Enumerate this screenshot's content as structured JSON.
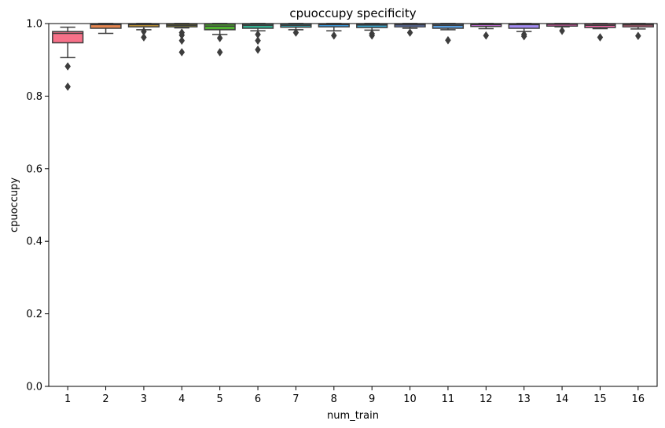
{
  "chart_data": {
    "type": "box",
    "title": "cpuoccupy specificity",
    "xlabel": "num_train",
    "ylabel": "cpuoccupy",
    "ylim": [
      0,
      1
    ],
    "yticks": [
      0.0,
      0.2,
      0.4,
      0.6,
      0.8,
      1.0
    ],
    "ytick_labels": [
      "0.0",
      "0.2",
      "0.4",
      "0.6",
      "0.8",
      "1.0"
    ],
    "grid": false,
    "legend": "none",
    "categories": [
      "1",
      "2",
      "3",
      "4",
      "5",
      "6",
      "7",
      "8",
      "9",
      "10",
      "11",
      "12",
      "13",
      "14",
      "15",
      "16"
    ],
    "boxes": [
      {
        "category": "1",
        "color": "#f77189",
        "whisker_low": 0.906,
        "q1": 0.947,
        "median": 0.973,
        "q3": 0.978,
        "whisker_high": 0.99,
        "outliers": [
          0.882,
          0.826
        ]
      },
      {
        "category": "2",
        "color": "#e5854e",
        "whisker_low": 0.973,
        "q1": 0.987,
        "median": 0.997,
        "q3": 0.999,
        "whisker_high": 1.0,
        "outliers": []
      },
      {
        "category": "3",
        "color": "#c39532",
        "whisker_low": 0.983,
        "q1": 0.991,
        "median": 0.997,
        "q3": 0.999,
        "whisker_high": 1.0,
        "outliers": [
          0.978,
          0.962
        ]
      },
      {
        "category": "4",
        "color": "#a4a031",
        "whisker_low": 0.988,
        "q1": 0.991,
        "median": 0.995,
        "q3": 0.999,
        "whisker_high": 1.0,
        "outliers": [
          0.975,
          0.968,
          0.953,
          0.921
        ]
      },
      {
        "category": "5",
        "color": "#50b131",
        "whisker_low": 0.97,
        "q1": 0.983,
        "median": 0.993,
        "q3": 0.999,
        "whisker_high": 1.0,
        "outliers": [
          0.96,
          0.921
        ]
      },
      {
        "category": "6",
        "color": "#34ae91",
        "whisker_low": 0.98,
        "q1": 0.987,
        "median": 0.995,
        "q3": 0.999,
        "whisker_high": 1.0,
        "outliers": [
          0.97,
          0.953,
          0.928
        ]
      },
      {
        "category": "7",
        "color": "#37abb5",
        "whisker_low": 0.983,
        "q1": 0.99,
        "median": 0.995,
        "q3": 0.999,
        "whisker_high": 1.0,
        "outliers": [
          0.975
        ]
      },
      {
        "category": "8",
        "color": "#3ba3ec",
        "whisker_low": 0.98,
        "q1": 0.991,
        "median": 0.997,
        "q3": 0.999,
        "whisker_high": 1.0,
        "outliers": [
          0.967
        ]
      },
      {
        "category": "9",
        "color": "#38a7d0",
        "whisker_low": 0.982,
        "q1": 0.989,
        "median": 0.996,
        "q3": 0.999,
        "whisker_high": 1.0,
        "outliers": [
          0.972,
          0.967
        ]
      },
      {
        "category": "10",
        "color": "#6f94f4",
        "whisker_low": 0.987,
        "q1": 0.991,
        "median": 0.996,
        "q3": 0.999,
        "whisker_high": 1.0,
        "outliers": [
          0.975
        ]
      },
      {
        "category": "11",
        "color": "#5a9fe0",
        "whisker_low": 0.983,
        "q1": 0.987,
        "median": 0.995,
        "q3": 0.999,
        "whisker_high": 1.0,
        "outliers": [
          0.954
        ]
      },
      {
        "category": "12",
        "color": "#d16de6",
        "whisker_low": 0.986,
        "q1": 0.992,
        "median": 0.997,
        "q3": 0.999,
        "whisker_high": 1.0,
        "outliers": [
          0.967
        ]
      },
      {
        "category": "13",
        "color": "#a48cf4",
        "whisker_low": 0.978,
        "q1": 0.987,
        "median": 0.997,
        "q3": 0.999,
        "whisker_high": 1.0,
        "outliers": [
          0.97,
          0.965
        ]
      },
      {
        "category": "14",
        "color": "#f45fbb",
        "whisker_low": 0.991,
        "q1": 0.993,
        "median": 0.998,
        "q3": 0.999,
        "whisker_high": 1.0,
        "outliers": [
          0.98
        ]
      },
      {
        "category": "15",
        "color": "#f66bac",
        "whisker_low": 0.986,
        "q1": 0.989,
        "median": 0.995,
        "q3": 0.999,
        "whisker_high": 1.0,
        "outliers": [
          0.962
        ]
      },
      {
        "category": "16",
        "color": "#f7698e",
        "whisker_low": 0.985,
        "q1": 0.991,
        "median": 0.996,
        "q3": 0.999,
        "whisker_high": 1.0,
        "outliers": [
          0.966
        ]
      }
    ]
  }
}
